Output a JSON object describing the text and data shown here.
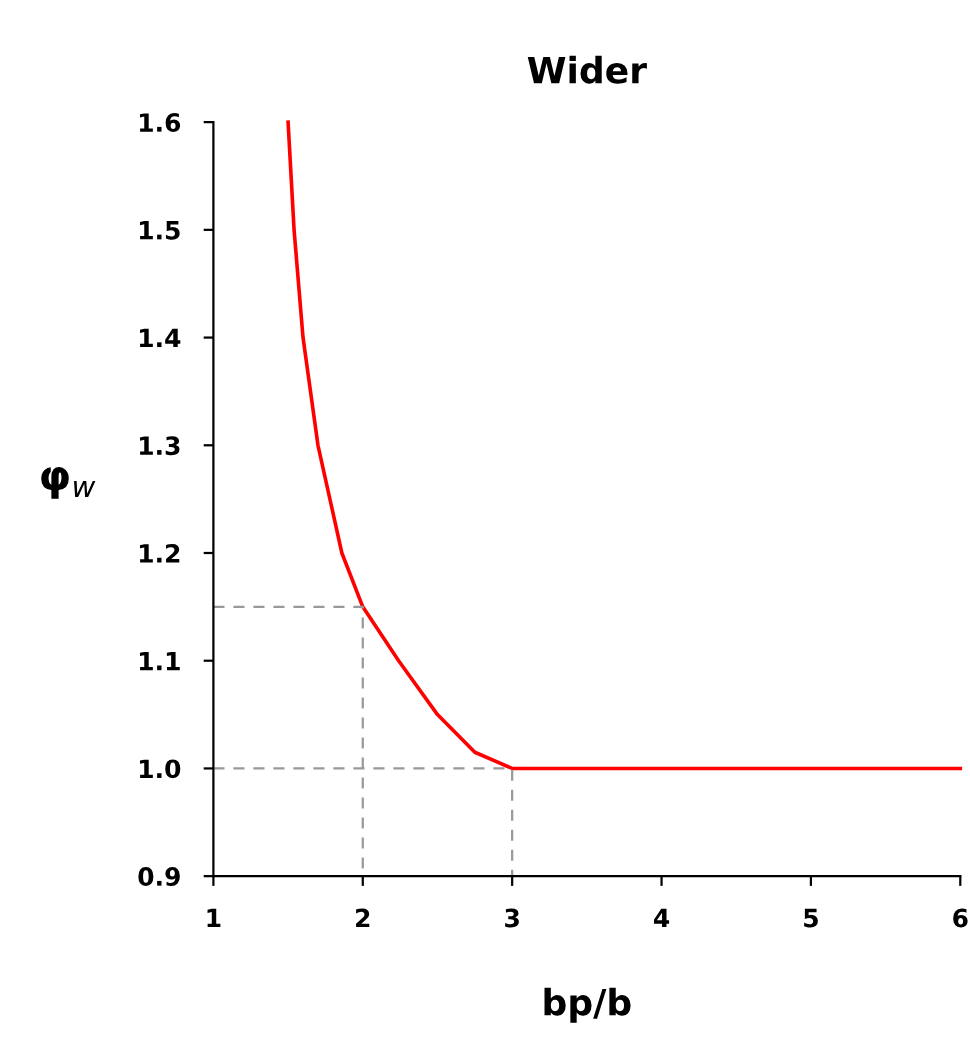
{
  "chart_data": {
    "type": "line",
    "title": "Wider",
    "xlabel": "bp/b",
    "ylabel": "φ$_{w}$",
    "series": [
      {
        "color": "#ff0000",
        "x": [
          1.5,
          1.54,
          1.6,
          1.7,
          1.86,
          2.0,
          2.24,
          2.5,
          2.75,
          3.0,
          6.0
        ],
        "values": [
          1.6,
          1.5,
          1.4,
          1.3,
          1.2,
          1.15,
          1.1,
          1.05,
          1.015,
          1.0,
          1.0
        ]
      },
      {
        "color": "#999999",
        "line_style": "dashed",
        "x": [
          1,
          2,
          2
        ],
        "values": [
          1.15,
          1.15,
          0.9
        ]
      },
      {
        "color": "#999999",
        "line_style": "dashed",
        "x": [
          1,
          3,
          3
        ],
        "values": [
          1.0,
          1.0,
          0.9
        ]
      }
    ],
    "xlim": [
      1,
      6
    ],
    "xticks": [
      1,
      2,
      3,
      4,
      5,
      6
    ],
    "ylim": [
      0.9,
      1.6
    ],
    "yticks": [
      0.9,
      {
        "value": 1.0,
        "label": "1.0"
      },
      1.1,
      1.2,
      1.3,
      1.4,
      1.5,
      1.6
    ],
    "grid": false
  }
}
